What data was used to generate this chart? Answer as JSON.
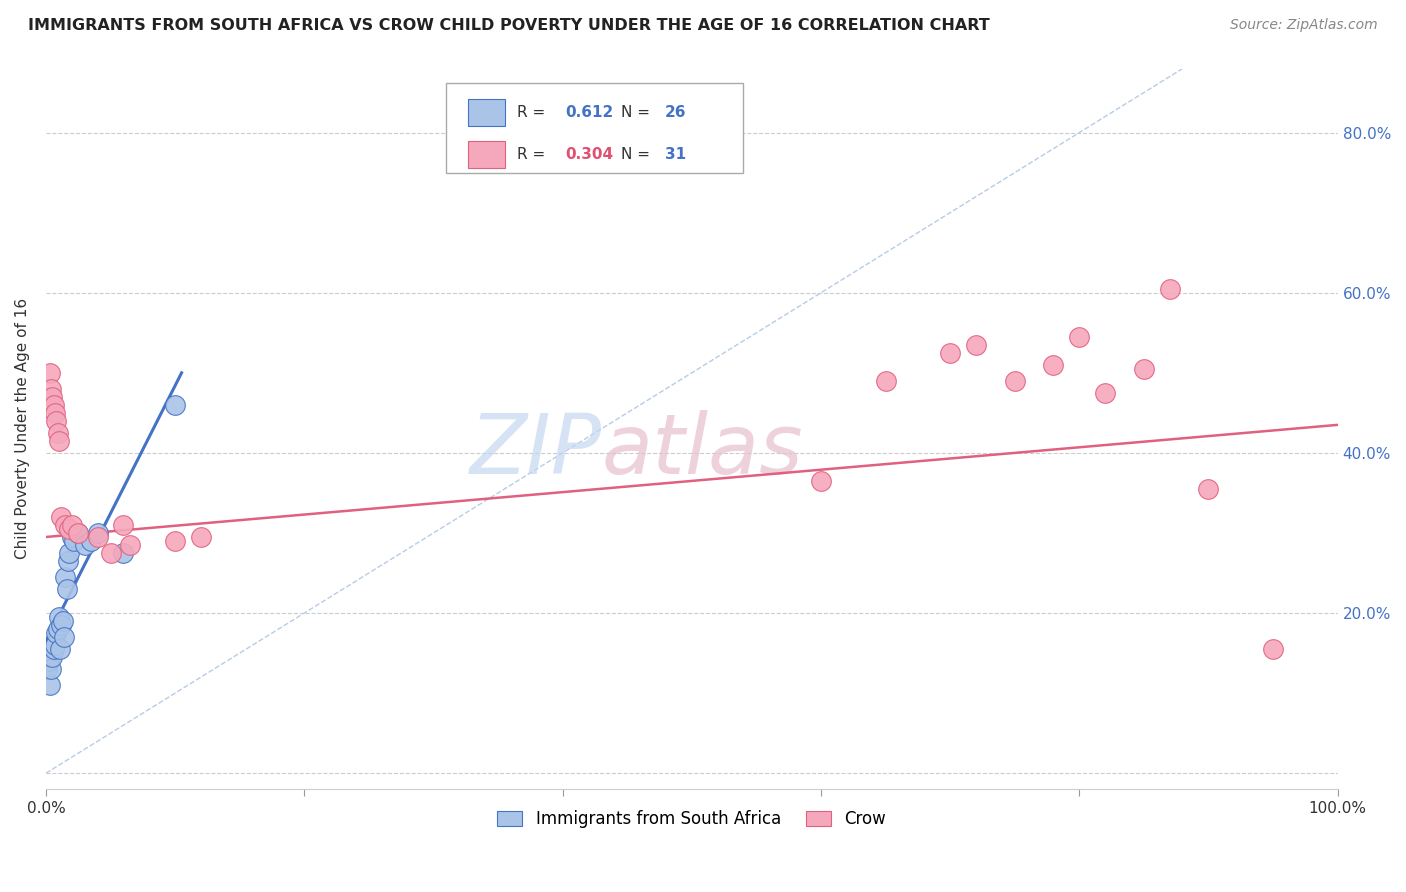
{
  "title": "IMMIGRANTS FROM SOUTH AFRICA VS CROW CHILD POVERTY UNDER THE AGE OF 16 CORRELATION CHART",
  "source": "Source: ZipAtlas.com",
  "ylabel": "Child Poverty Under the Age of 16",
  "xlim": [
    0,
    1.0
  ],
  "ylim": [
    -0.02,
    0.88
  ],
  "blue_R": "0.612",
  "blue_N": "26",
  "pink_R": "0.304",
  "pink_N": "31",
  "blue_color": "#aac4e8",
  "pink_color": "#f5a8bb",
  "blue_line_color": "#4472c4",
  "pink_line_color": "#e06080",
  "diagonal_color": "#b8cce4",
  "legend_label_blue": "Immigrants from South Africa",
  "legend_label_pink": "Crow",
  "blue_scatter_x": [
    0.001,
    0.002,
    0.003,
    0.004,
    0.005,
    0.006,
    0.007,
    0.008,
    0.009,
    0.01,
    0.011,
    0.012,
    0.013,
    0.014,
    0.015,
    0.016,
    0.017,
    0.018,
    0.02,
    0.022,
    0.025,
    0.03,
    0.035,
    0.04,
    0.06,
    0.1
  ],
  "blue_scatter_y": [
    0.13,
    0.14,
    0.11,
    0.13,
    0.145,
    0.155,
    0.16,
    0.175,
    0.18,
    0.195,
    0.155,
    0.185,
    0.19,
    0.17,
    0.245,
    0.23,
    0.265,
    0.275,
    0.295,
    0.29,
    0.3,
    0.285,
    0.29,
    0.3,
    0.275,
    0.46
  ],
  "pink_scatter_x": [
    0.003,
    0.004,
    0.005,
    0.006,
    0.007,
    0.008,
    0.009,
    0.01,
    0.012,
    0.015,
    0.018,
    0.02,
    0.025,
    0.04,
    0.05,
    0.06,
    0.065,
    0.1,
    0.12,
    0.6,
    0.65,
    0.7,
    0.72,
    0.75,
    0.78,
    0.8,
    0.82,
    0.85,
    0.87,
    0.9,
    0.95
  ],
  "pink_scatter_y": [
    0.5,
    0.48,
    0.47,
    0.46,
    0.45,
    0.44,
    0.425,
    0.415,
    0.32,
    0.31,
    0.305,
    0.31,
    0.3,
    0.295,
    0.275,
    0.31,
    0.285,
    0.29,
    0.295,
    0.365,
    0.49,
    0.525,
    0.535,
    0.49,
    0.51,
    0.545,
    0.475,
    0.505,
    0.605,
    0.355,
    0.155
  ],
  "blue_line_x": [
    0.0,
    0.105
  ],
  "blue_line_y": [
    0.165,
    0.5
  ],
  "pink_line_x": [
    0.0,
    1.0
  ],
  "pink_line_y": [
    0.295,
    0.435
  ]
}
